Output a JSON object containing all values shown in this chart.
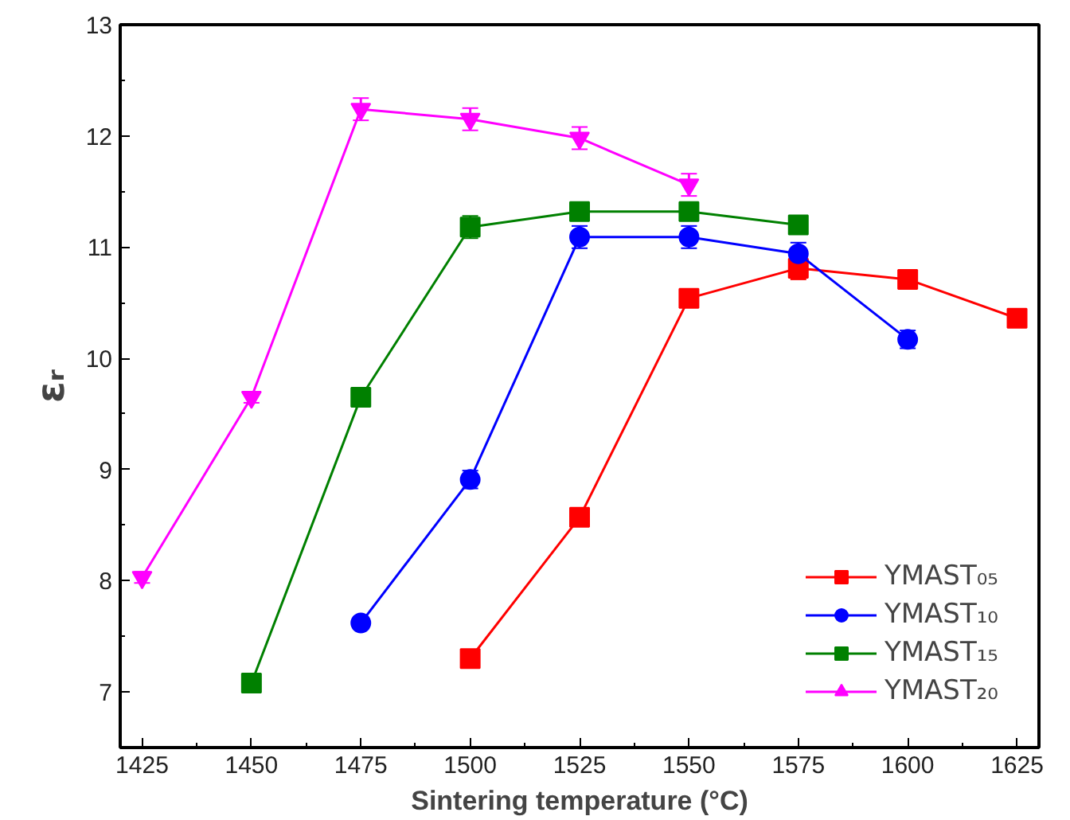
{
  "chart_data": {
    "type": "line",
    "xlabel": "Sintering temperature (°C)",
    "ylabel": "εᵣ",
    "xlim": [
      1420,
      1630
    ],
    "xticks": [
      1425,
      1450,
      1475,
      1500,
      1525,
      1550,
      1575,
      1600,
      1625
    ],
    "ylim": [
      6.5,
      13
    ],
    "yticks": [
      7,
      8,
      9,
      10,
      11,
      12,
      13
    ],
    "grid": false,
    "legend": "bottom right",
    "line_style": "solid",
    "series": [
      {
        "name": "YMAST₀₅",
        "color": "#ff0000",
        "marker": "square",
        "x": [
          1500,
          1525,
          1550,
          1575,
          1600,
          1625
        ],
        "values": [
          7.3,
          8.57,
          10.54,
          10.81,
          10.71,
          10.36
        ],
        "errors": [
          0.05,
          0.05,
          0.08,
          0.1,
          0.08,
          0.08
        ]
      },
      {
        "name": "YMAST₁₀",
        "color": "#0000ff",
        "marker": "circle",
        "x": [
          1475,
          1500,
          1525,
          1550,
          1575,
          1600
        ],
        "values": [
          7.62,
          8.91,
          11.09,
          11.09,
          10.94,
          10.17
        ],
        "errors": [
          0.05,
          0.08,
          0.1,
          0.1,
          0.1,
          0.08
        ]
      },
      {
        "name": "YMAST₁₅",
        "color": "#008000",
        "marker": "square",
        "x": [
          1450,
          1475,
          1500,
          1525,
          1550,
          1575
        ],
        "values": [
          7.08,
          9.65,
          11.18,
          11.32,
          11.32,
          11.2
        ],
        "errors": [
          0.05,
          0.08,
          0.1,
          0.08,
          0.08,
          0.08
        ]
      },
      {
        "name": "YMAST₂₀",
        "color": "#ff00ff",
        "marker": "triangle",
        "x": [
          1425,
          1450,
          1475,
          1500,
          1525,
          1550
        ],
        "values": [
          8.03,
          9.65,
          12.24,
          12.15,
          11.98,
          11.56
        ],
        "errors": [
          0.05,
          0.05,
          0.1,
          0.1,
          0.1,
          0.1
        ]
      }
    ]
  }
}
